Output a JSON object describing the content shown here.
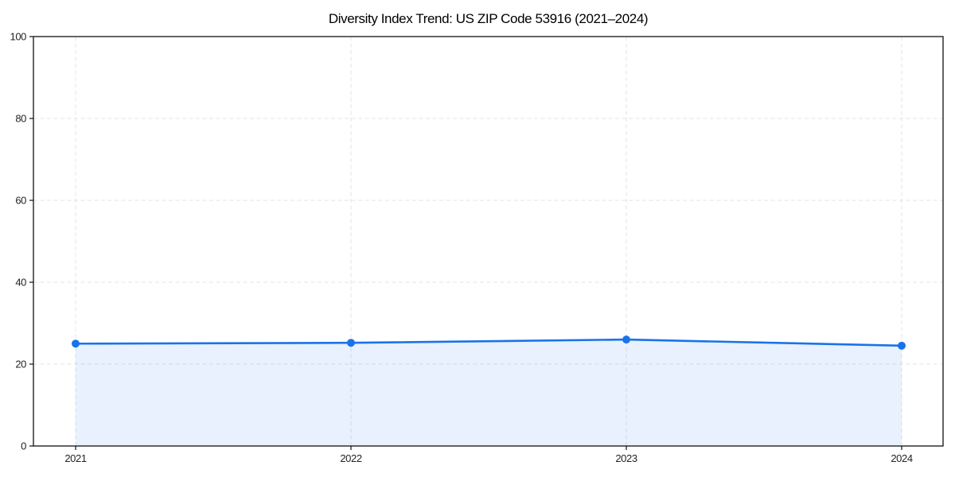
{
  "chart_data": {
    "type": "line",
    "title": "Diversity Index Trend: US ZIP Code 53916 (2021–2024)",
    "x": [
      2021,
      2022,
      2023,
      2024
    ],
    "series": [
      {
        "name": "Diversity Index",
        "values": [
          25,
          25.2,
          26,
          24.5
        ]
      }
    ],
    "xticks": [
      "2021",
      "2022",
      "2023",
      "2024"
    ],
    "yticks": [
      0,
      20,
      40,
      60,
      80,
      100
    ],
    "ylim": [
      0,
      100
    ],
    "xlabel": "",
    "ylabel": "",
    "grid": "both, dashed",
    "legend": "none",
    "area_fill": true,
    "marker": "circle",
    "colors": {
      "line": "#1a73e8",
      "marker": "#1a73e8",
      "area_fill": "#1a73e8",
      "area_fill_opacity": 0.1,
      "grid": "#e3e3e3",
      "axis": "#111111",
      "tick_label": "#222222",
      "title": "#000000",
      "background": "#ffffff"
    }
  }
}
